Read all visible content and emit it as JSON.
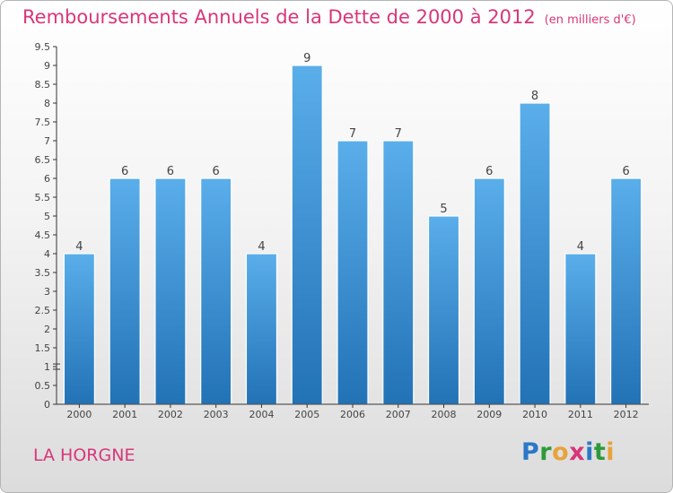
{
  "title": "Remboursements Annuels de la Dette de 2000 à 2012",
  "unit": "(en milliers d'€)",
  "commune": "LA HORGNE",
  "logo": {
    "letters": [
      "P",
      "r",
      "o",
      "x",
      "i",
      "t",
      "i"
    ],
    "colors": [
      "#2b78c8",
      "#2e9a3a",
      "#e8a33b",
      "#d8367a",
      "#2b78c8",
      "#2e9a3a",
      "#e8a33b"
    ]
  },
  "colors": {
    "bar": "#4a9ee0",
    "title": "#d8367a",
    "axis": "#333333"
  },
  "chart_data": {
    "type": "bar",
    "title": "Remboursements Annuels de la Dette de 2000 à 2012",
    "categories": [
      "2000",
      "2001",
      "2002",
      "2003",
      "2004",
      "2005",
      "2006",
      "2007",
      "2008",
      "2009",
      "2010",
      "2011",
      "2012"
    ],
    "values": [
      4,
      6,
      6,
      6,
      4,
      9,
      7,
      7,
      5,
      6,
      8,
      4,
      6
    ],
    "data_labels": [
      "4",
      "6",
      "6",
      "6",
      "4",
      "9",
      "7",
      "7",
      "5",
      "6",
      "8",
      "4",
      "6"
    ],
    "ylim": [
      0,
      9.5
    ],
    "yticks": [
      "0",
      "0.5",
      "1",
      "1.5",
      "2",
      "2.5",
      "3",
      "3.5",
      "4",
      "4.5",
      "5",
      "5.5",
      "6",
      "6.5",
      "7",
      "7.5",
      "8",
      "8.5",
      "9",
      "9.5"
    ],
    "grid": false,
    "legend": "none"
  }
}
